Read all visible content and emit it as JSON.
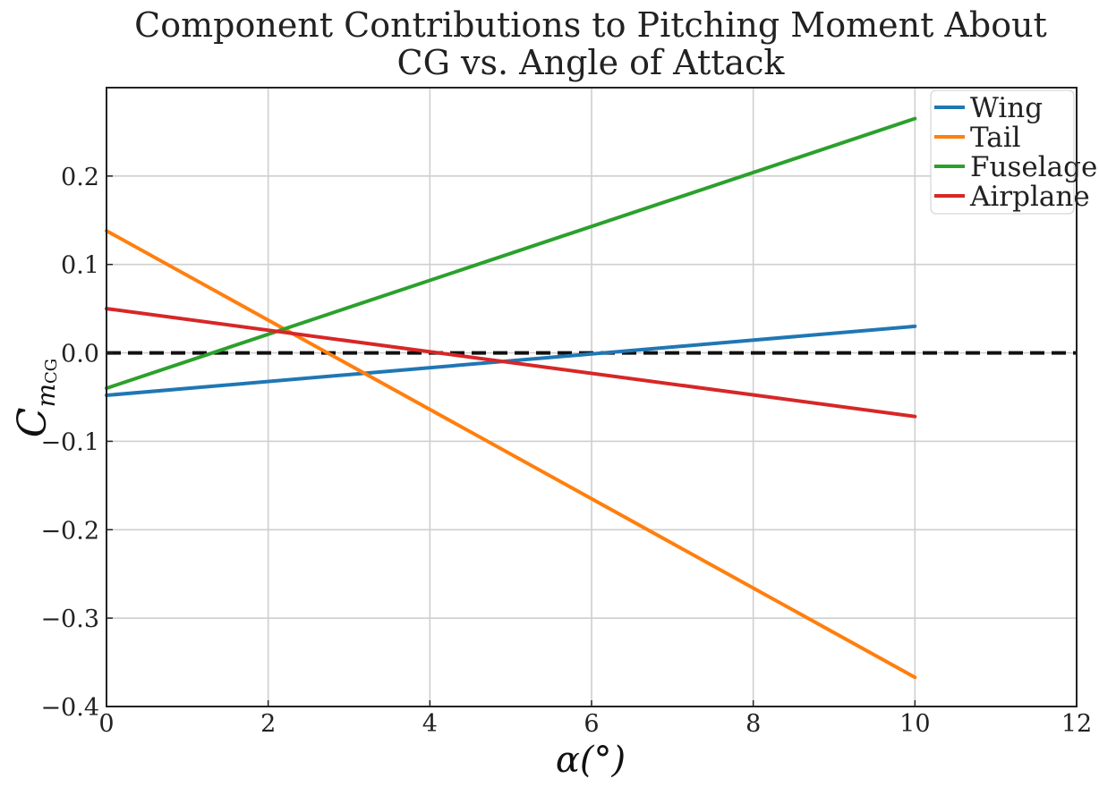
{
  "chart_data": {
    "type": "line",
    "title_lines": [
      "Component Contributions to Pitching Moment About",
      "CG vs. Angle of Attack"
    ],
    "xlabel": "α(°)",
    "ylabel": {
      "main": "C",
      "sub": "m",
      "subsub": "CG"
    },
    "xlim": [
      0,
      12
    ],
    "ylim": [
      -0.4,
      0.3
    ],
    "xticks": [
      0,
      2,
      4,
      6,
      8,
      10,
      12
    ],
    "xtick_labels": [
      "0",
      "2",
      "4",
      "6",
      "8",
      "10",
      "12"
    ],
    "yticks": [
      -0.4,
      -0.3,
      -0.2,
      -0.1,
      0.0,
      0.1,
      0.2
    ],
    "ytick_labels": [
      "−0.4",
      "−0.3",
      "−0.2",
      "−0.1",
      "0.0",
      "0.1",
      "0.2"
    ],
    "grid": true,
    "legend_position": "top-right",
    "reference_line": {
      "y": 0.0,
      "style": "dashed",
      "color": "#111111"
    },
    "series": [
      {
        "name": "Wing",
        "color": "#1f77b4",
        "x": [
          0,
          10
        ],
        "y": [
          -0.048,
          0.03
        ]
      },
      {
        "name": "Tail",
        "color": "#ff7f0e",
        "x": [
          0,
          10
        ],
        "y": [
          0.138,
          -0.367
        ]
      },
      {
        "name": "Fuselage",
        "color": "#2ca02c",
        "x": [
          0,
          10
        ],
        "y": [
          -0.04,
          0.265
        ]
      },
      {
        "name": "Airplane",
        "color": "#d62728",
        "x": [
          0,
          10
        ],
        "y": [
          0.05,
          -0.072
        ]
      }
    ]
  }
}
